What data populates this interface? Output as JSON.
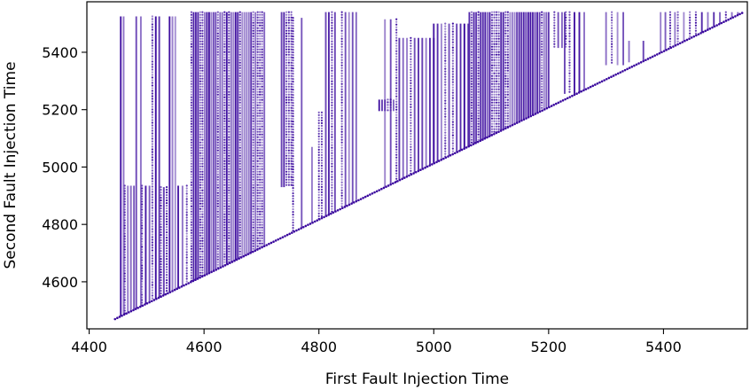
{
  "chart_data": {
    "type": "scatter",
    "title": "",
    "xlabel": "First Fault Injection Time",
    "ylabel": "Second Fault Injection Time",
    "xlim": [
      4396,
      5546
    ],
    "ylim": [
      4436,
      5576
    ],
    "xticks": [
      "4400",
      "4600",
      "4800",
      "5000",
      "5200",
      "5400"
    ],
    "yticks": [
      "4600",
      "4800",
      "5000",
      "5200",
      "5400"
    ],
    "grid": false,
    "legend": "none",
    "point_color": "#3b0a9e",
    "point_alpha_range": [
      0.45,
      1.0
    ],
    "diagonal": [
      [
        4445,
        4470
      ],
      [
        5540,
        5540
      ]
    ],
    "clusters": [
      {
        "x_range": [
          4455,
          4460
        ],
        "y_range": [
          4460,
          5525
        ],
        "stripes": 2
      },
      {
        "x_range": [
          4462,
          4478
        ],
        "y_range": [
          4465,
          4935
        ],
        "stripes": 4
      },
      {
        "x_range": [
          4482,
          4490
        ],
        "y_range": [
          4480,
          5525
        ],
        "stripes": 2
      },
      {
        "x_range": [
          4492,
          4505
        ],
        "y_range": [
          4490,
          4935
        ],
        "stripes": 3
      },
      {
        "x_range": [
          4510,
          4522
        ],
        "y_range": [
          4510,
          5525
        ],
        "stripes": 3
      },
      {
        "x_range": [
          4525,
          4535
        ],
        "y_range": [
          4520,
          4930
        ],
        "stripes": 3
      },
      {
        "x_range": [
          4540,
          4550
        ],
        "y_range": [
          4535,
          5525
        ],
        "stripes": 3
      },
      {
        "x_range": [
          4555,
          4570
        ],
        "y_range": [
          4545,
          4935
        ],
        "stripes": 3
      },
      {
        "x_range": [
          4578,
          4705
        ],
        "y_range": [
          4560,
          5540
        ],
        "stripes": 34
      },
      {
        "x_range": [
          4735,
          4752
        ],
        "y_range": [
          4930,
          5540
        ],
        "stripes": 5
      },
      {
        "x_range": [
          4755,
          4770
        ],
        "y_range": [
          4765,
          5520
        ],
        "stripes": 2
      },
      {
        "x_range": [
          4788,
          4792
        ],
        "y_range": [
          4780,
          5070
        ],
        "stripes": 1
      },
      {
        "x_range": [
          4800,
          4805
        ],
        "y_range": [
          4805,
          5190
        ],
        "stripes": 2
      },
      {
        "x_range": [
          4812,
          4828
        ],
        "y_range": [
          4805,
          5540
        ],
        "stripes": 4
      },
      {
        "x_range": [
          4840,
          4865
        ],
        "y_range": [
          4810,
          5540
        ],
        "stripes": 5
      },
      {
        "x_range": [
          4905,
          4930
        ],
        "y_range": [
          5195,
          5235
        ],
        "stripes": 6
      },
      {
        "x_range": [
          4915,
          4935
        ],
        "y_range": [
          4905,
          5515
        ],
        "stripes": 3
      },
      {
        "x_range": [
          4940,
          5000
        ],
        "y_range": [
          4930,
          5450
        ],
        "stripes": 10
      },
      {
        "x_range": [
          5000,
          5060
        ],
        "y_range": [
          4985,
          5500
        ],
        "stripes": 10
      },
      {
        "x_range": [
          5062,
          5200
        ],
        "y_range": [
          5045,
          5540
        ],
        "stripes": 36
      },
      {
        "x_range": [
          5210,
          5230
        ],
        "y_range": [
          5415,
          5540
        ],
        "stripes": 4
      },
      {
        "x_range": [
          5228,
          5262
        ],
        "y_range": [
          5255,
          5540
        ],
        "stripes": 5
      },
      {
        "x_range": [
          5300,
          5330
        ],
        "y_range": [
          5355,
          5540
        ],
        "stripes": 4
      },
      {
        "x_range": [
          5340,
          5365
        ],
        "y_range": [
          5365,
          5440
        ],
        "stripes": 2
      },
      {
        "x_range": [
          5395,
          5420
        ],
        "y_range": [
          5395,
          5540
        ],
        "stripes": 4
      },
      {
        "x_range": [
          5425,
          5540
        ],
        "y_range": [
          5420,
          5540
        ],
        "stripes": 12
      }
    ]
  }
}
